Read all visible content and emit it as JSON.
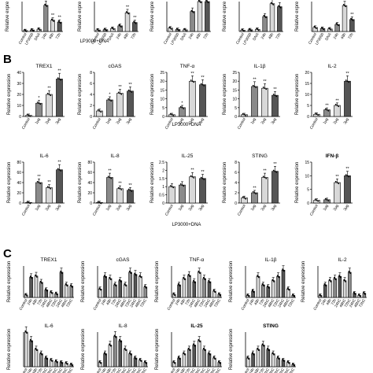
{
  "panels": {
    "a": {
      "letter": "",
      "xgroup": "LP3000+DNA"
    },
    "b": {
      "letter": "B",
      "xgroup": "LP3000+DNA"
    },
    "c": {
      "letter": "C"
    }
  },
  "colors": {
    "axis": "#000000",
    "bar_dark": "#555555",
    "bar_mid": "#8a8a8a",
    "bar_light": "#d8d8d8",
    "point": "#000000"
  },
  "chart_data": [
    {
      "panel": "a",
      "id": "a1",
      "type": "bar",
      "title": "",
      "ylabel": "Relative expre",
      "categories": [
        "Control",
        "LP3000",
        "DNA",
        "24h",
        "48h",
        "72h"
      ],
      "values": [
        0.5,
        0.8,
        1.2,
        14,
        6,
        5
      ],
      "ylim": [
        0,
        16
      ],
      "annotations": [
        "",
        "",
        "",
        "",
        "**",
        "**"
      ]
    },
    {
      "panel": "a",
      "id": "a2",
      "type": "bar",
      "title": "",
      "ylabel": "Relative expre",
      "categories": [
        "Control",
        "LP3000",
        "DNA",
        "24h",
        "48h",
        "72h"
      ],
      "values": [
        0.4,
        0.5,
        0.8,
        1.5,
        5,
        2.4
      ],
      "ylim": [
        0,
        8
      ],
      "annotations": [
        "",
        "",
        "",
        "",
        "**",
        "**"
      ]
    },
    {
      "panel": "a",
      "id": "a3",
      "type": "bar",
      "title": "",
      "ylabel": "Relative expre",
      "categories": [
        "Control",
        "LP3000",
        "DNA",
        "24h",
        "48h",
        "72h"
      ],
      "values": [
        1,
        0.6,
        0.5,
        6,
        9,
        9
      ],
      "ylim": [
        0,
        9
      ],
      "annotations": [
        "",
        "",
        "",
        "",
        "",
        ""
      ]
    },
    {
      "panel": "a",
      "id": "a4",
      "type": "bar",
      "title": "",
      "ylabel": "Relative expre",
      "categories": [
        "Control",
        "LP3000",
        "DNA",
        "24h",
        "48h",
        "72h"
      ],
      "values": [
        0.3,
        0.4,
        0.5,
        3.5,
        6.5,
        5.8
      ],
      "ylim": [
        0,
        7
      ],
      "annotations": [
        "",
        "",
        "",
        "",
        "**",
        "**"
      ]
    },
    {
      "panel": "a",
      "id": "a5",
      "type": "bar",
      "title": "",
      "ylabel": "Relative expre",
      "categories": [
        "Control",
        "LP3000",
        "DNA",
        "24h",
        "48h",
        "72h"
      ],
      "values": [
        0.8,
        0.6,
        0.5,
        1.4,
        5.2,
        2.4
      ],
      "ylim": [
        0,
        6
      ],
      "annotations": [
        "",
        "",
        "",
        "",
        "**",
        "**"
      ]
    },
    {
      "panel": "b",
      "id": "b1",
      "type": "bar",
      "title": "TREX1",
      "ylabel": "Relative expression",
      "categories": [
        "Control",
        "1μg",
        "2μg",
        "3μg"
      ],
      "values": [
        1,
        12,
        20,
        34
      ],
      "yticks": [
        0,
        10,
        20,
        30,
        40
      ],
      "ylim": [
        0,
        40
      ],
      "annotations": [
        "",
        "*",
        "**",
        "**"
      ]
    },
    {
      "panel": "b",
      "id": "b2",
      "type": "bar",
      "title": "cGAS",
      "ylabel": "Relative expression",
      "categories": [
        "Control",
        "1μg",
        "2μg",
        "3μg"
      ],
      "values": [
        1,
        3,
        4.2,
        4.6
      ],
      "yticks": [
        0,
        2,
        4,
        6,
        8
      ],
      "ylim": [
        0,
        8
      ],
      "annotations": [
        "",
        "*",
        "**",
        "**"
      ]
    },
    {
      "panel": "b",
      "id": "b3",
      "type": "bar",
      "title": "TNF-α",
      "ylabel": "Relative expression",
      "categories": [
        "Control",
        "1μg",
        "2μg",
        "3μg"
      ],
      "values": [
        1,
        5,
        20,
        18
      ],
      "yticks": [
        0,
        5,
        10,
        15,
        20,
        25
      ],
      "ylim": [
        0,
        25
      ],
      "annotations": [
        "",
        "*",
        "**",
        "**"
      ]
    },
    {
      "panel": "b",
      "id": "b4",
      "type": "bar",
      "title": "IL-1β",
      "ylabel": "Relative expression",
      "categories": [
        "Control",
        "1μg",
        "2μg",
        "3μg"
      ],
      "values": [
        1,
        17,
        16,
        12
      ],
      "yticks": [
        0,
        5,
        10,
        15,
        20,
        25
      ],
      "ylim": [
        0,
        25
      ],
      "annotations": [
        "",
        "**",
        "**",
        "**"
      ]
    },
    {
      "panel": "b",
      "id": "b5",
      "type": "bar",
      "title": "IL-2",
      "ylabel": "Relative expression",
      "categories": [
        "Control",
        "1μg",
        "2μg",
        "3μg"
      ],
      "values": [
        1,
        3,
        5,
        16
      ],
      "yticks": [
        0,
        5,
        10,
        15,
        20
      ],
      "ylim": [
        0,
        20
      ],
      "annotations": [
        "",
        "**",
        "**",
        "**"
      ]
    },
    {
      "panel": "b",
      "id": "b6",
      "type": "bar",
      "title": "IL-6",
      "ylabel": "Relative expression",
      "categories": [
        "Control",
        "1μg",
        "2μg",
        "3μg"
      ],
      "values": [
        1,
        40,
        30,
        65
      ],
      "yticks": [
        0,
        20,
        40,
        60,
        80
      ],
      "ylim": [
        0,
        80
      ],
      "annotations": [
        "",
        "**",
        "**",
        "**"
      ]
    },
    {
      "panel": "b",
      "id": "b7",
      "type": "bar",
      "title": "IL-8",
      "ylabel": "Relative expression",
      "categories": [
        "Control",
        "1μg",
        "2μg",
        "3μg"
      ],
      "values": [
        1,
        50,
        28,
        25
      ],
      "yticks": [
        0,
        20,
        40,
        60,
        80
      ],
      "ylim": [
        0,
        80
      ],
      "annotations": [
        "",
        "**",
        "**",
        "**"
      ]
    },
    {
      "panel": "b",
      "id": "b8",
      "type": "bar",
      "title": "IL-25",
      "ylabel": "Relative expression",
      "categories": [
        "Control",
        "1μg",
        "2μg",
        "3μg"
      ],
      "values": [
        1,
        1.1,
        1.6,
        1.5
      ],
      "yticks": [
        0.0,
        0.5,
        1.0,
        1.5,
        2.0,
        2.5
      ],
      "ylim": [
        0,
        2.5
      ],
      "annotations": [
        "",
        "",
        "**",
        "**"
      ]
    },
    {
      "panel": "b",
      "id": "b9",
      "type": "bar",
      "title": "STING",
      "ylabel": "Relative expression",
      "categories": [
        "Control",
        "1μg",
        "2μg",
        "3μg"
      ],
      "values": [
        1,
        2,
        5,
        6.2
      ],
      "yticks": [
        0,
        2,
        4,
        6,
        8
      ],
      "ylim": [
        0,
        8
      ],
      "annotations": [
        "",
        "**",
        "**",
        "**"
      ]
    },
    {
      "panel": "b",
      "id": "b10",
      "type": "bar",
      "title": "IFN-β",
      "ylabel": "Relative expression",
      "categories": [
        "Control",
        "1μg",
        "2μg",
        "3μg"
      ],
      "values": [
        1,
        1.2,
        7.5,
        10
      ],
      "yticks": [
        0,
        5,
        10,
        15
      ],
      "ylim": [
        0,
        15
      ],
      "annotations": [
        "",
        "",
        "**",
        "**"
      ]
    },
    {
      "panel": "c",
      "id": "c1",
      "type": "bar",
      "title": "TREX1",
      "ylabel": "Relative expression",
      "categories": [
        "Control",
        "24h",
        "48h",
        "72h",
        "24hC",
        "48hC",
        "72hC",
        "24hC",
        "48hC",
        "72hC"
      ],
      "values": [
        2,
        16,
        17,
        12,
        6,
        4,
        3,
        20,
        10,
        9
      ],
      "ylim": [
        0,
        25
      ]
    },
    {
      "panel": "c",
      "id": "c2",
      "type": "bar",
      "title": "cGAS",
      "ylabel": "Relative expression",
      "categories": [
        "Control",
        "24h",
        "48h",
        "72h",
        "24hC",
        "48hC",
        "72hC",
        "24hC",
        "48hC",
        "72hC"
      ],
      "values": [
        4,
        10,
        9,
        6,
        8,
        6,
        12,
        11,
        10,
        5
      ],
      "ylim": [
        0,
        15
      ]
    },
    {
      "panel": "c",
      "id": "c3",
      "type": "bar",
      "title": "TNF-α",
      "ylabel": "Relative expression",
      "categories": [
        "Control",
        "24h",
        "48h",
        "72h",
        "24hC",
        "48hC",
        "72hC",
        "24hC",
        "48hC",
        "72hC"
      ],
      "values": [
        1,
        4,
        6,
        7,
        5,
        8,
        6,
        5,
        2,
        1
      ],
      "ylim": [
        0,
        10
      ]
    },
    {
      "panel": "c",
      "id": "c4",
      "type": "bar",
      "title": "IL-1β",
      "ylabel": "Relative expression",
      "categories": [
        "Control",
        "24h",
        "48h",
        "72h",
        "24hC",
        "48hC",
        "72hC",
        "24hC",
        "48hC",
        "72hC"
      ],
      "values": [
        1,
        3,
        10,
        6,
        5,
        8,
        10,
        13,
        4,
        1
      ],
      "ylim": [
        0,
        15
      ]
    },
    {
      "panel": "c",
      "id": "c5",
      "type": "bar",
      "title": "IL-2",
      "ylabel": "Relative expression",
      "categories": [
        "Control",
        "24h",
        "48h",
        "72h",
        "24hC",
        "48hC",
        "72hC",
        "24hC",
        "48hC",
        "72hC"
      ],
      "values": [
        1,
        6,
        8,
        9,
        10,
        8,
        12,
        2,
        1,
        2
      ],
      "ylim": [
        0,
        15
      ]
    },
    {
      "panel": "c",
      "id": "c6",
      "type": "bar",
      "title": "IL-6",
      "ylabel": "Relative expression",
      "categories": [
        "Control",
        "24h",
        "48h",
        "72h",
        "24hC",
        "48hC",
        "72hC",
        "24hC",
        "48hC",
        "72hC"
      ],
      "values": [
        8,
        6,
        4,
        3,
        2,
        1.5,
        1.2,
        1,
        0.8,
        0.5
      ],
      "ylim": [
        0,
        8
      ]
    },
    {
      "panel": "c",
      "id": "c7",
      "type": "bar",
      "title": "IL-8",
      "ylabel": "Relative expression",
      "categories": [
        "Control",
        "24h",
        "48h",
        "72h",
        "24hC",
        "48hC",
        "72hC",
        "24hC",
        "48hC",
        "72hC"
      ],
      "values": [
        1,
        3,
        5,
        7,
        6,
        4,
        3,
        2,
        1.5,
        1
      ],
      "ylim": [
        0,
        8
      ]
    },
    {
      "panel": "c",
      "id": "c8",
      "type": "bar",
      "title": "IL-25",
      "ylabel": "Relative expression",
      "categories": [
        "Control",
        "24h",
        "48h",
        "72h",
        "24hC",
        "48hC",
        "72hC",
        "24hC",
        "48hC",
        "72hC"
      ],
      "values": [
        1,
        2,
        3,
        4,
        5,
        6,
        4,
        3,
        2,
        1
      ],
      "ylim": [
        0,
        8
      ]
    },
    {
      "panel": "c",
      "id": "c9",
      "type": "bar",
      "title": "STING",
      "ylabel": "Relative expression",
      "categories": [
        "Control",
        "24h",
        "48h",
        "72h",
        "24hC",
        "48hC",
        "72hC",
        "24hC",
        "48hC",
        "72hC"
      ],
      "values": [
        2,
        3,
        4,
        5,
        4,
        3,
        2,
        1.5,
        1,
        0.5
      ],
      "ylim": [
        0,
        8
      ]
    }
  ]
}
